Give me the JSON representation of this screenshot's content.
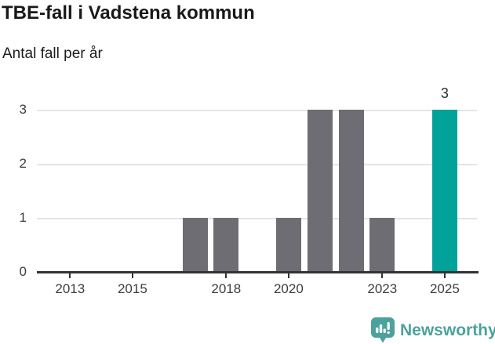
{
  "header": {
    "title": "TBE-fall i Vadstena kommun",
    "subtitle": "Antal fall per år"
  },
  "chart_data": {
    "type": "bar",
    "title": "TBE-fall i Vadstena kommun",
    "subtitle": "Antal fall per år",
    "ylabel": "Antal fall per år",
    "xlabel": "",
    "categories": [
      2012,
      2013,
      2014,
      2015,
      2016,
      2017,
      2018,
      2019,
      2020,
      2021,
      2022,
      2023,
      2024,
      2025
    ],
    "values": [
      0,
      0,
      0,
      0,
      0,
      1,
      1,
      0,
      1,
      3,
      3,
      1,
      0,
      3
    ],
    "highlight_category": 2025,
    "annotation": {
      "category": 2025,
      "label": "3"
    },
    "x_ticks": [
      2013,
      2015,
      2018,
      2020,
      2023,
      2025
    ],
    "y_ticks": [
      0,
      1,
      2,
      3
    ],
    "ylim": [
      0,
      3
    ],
    "grid": "horizontal",
    "legend": "none",
    "colors": {
      "bar": "#6e6d73",
      "highlight": "#00a29a",
      "gridline": "#e4e4e4",
      "axis": "#333333",
      "tick_label": "#3d3d3d"
    }
  },
  "footer": {
    "brand": "Newsworthy",
    "logo_icon": "bar-chart-speech-bubble",
    "logo_color": "#4ba29d"
  }
}
